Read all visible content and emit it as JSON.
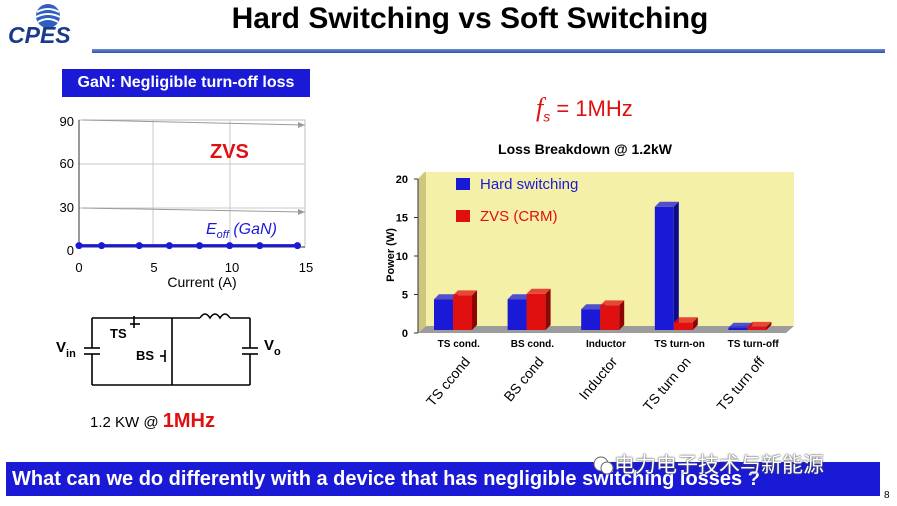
{
  "header": {
    "logo_text": "CPES",
    "title": "Hard Switching vs Soft Switching"
  },
  "badge": {
    "label": "GaN: Negligible turn-off loss"
  },
  "frequency": {
    "symbol": "f",
    "subscript": "s",
    "value": " = 1MHz"
  },
  "left_plot": {
    "zvs_label": "ZVS",
    "eoff_symbol": "E",
    "eoff_sub": "off",
    "eoff_rest": " (GaN)",
    "xlabel": "Current (A)",
    "xticks": [
      "0",
      "5",
      "10",
      "15"
    ],
    "yticks": [
      "0",
      "30",
      "60",
      "90"
    ]
  },
  "circuit": {
    "vin": "V",
    "vin_sub": "in",
    "vo": "V",
    "vo_sub": "o",
    "ts": "TS",
    "bs": "BS"
  },
  "power_note": {
    "prefix": "1.2 KW @ ",
    "freq": "1MHz"
  },
  "question": "What can we do differently with a device that has negligible switching losses ?",
  "watermark": "电力电子技术与新能源",
  "page_number": "8",
  "colors": {
    "hard": "#1a1ad6",
    "zvs": "#e01010",
    "chart_bg": "#f5f0a8",
    "banner": "#1a1ad6"
  },
  "chart_data": [
    {
      "type": "line",
      "x": [
        0,
        1.5,
        4,
        6,
        8,
        10,
        12,
        14.5
      ],
      "series": [
        {
          "name": "Eoff (GaN)",
          "values": [
            1,
            1,
            1,
            1,
            1,
            1,
            1,
            1
          ]
        }
      ],
      "xlabel": "Current (A)",
      "ylabel": "",
      "xlim": [
        0,
        15
      ],
      "ylim": [
        0,
        90
      ],
      "grid": true
    },
    {
      "type": "bar",
      "title": "Loss Breakdown @ 1.2kW",
      "categories": [
        "TS cond.",
        "BS cond.",
        "Inductor",
        "TS turn-on",
        "TS turn-off"
      ],
      "rotated_labels": [
        "TS ccond",
        "BS cond",
        "Inductor",
        "TS turn on",
        "TS turn off"
      ],
      "series": [
        {
          "name": "Hard switching",
          "values": [
            4,
            4,
            2.7,
            16,
            0.3
          ]
        },
        {
          "name": "ZVS (CRM)",
          "values": [
            4.5,
            4.7,
            3.2,
            1.0,
            0.4
          ]
        }
      ],
      "ylabel": "Power (W)",
      "yticks": [
        "0",
        "5",
        "10",
        "15",
        "20"
      ],
      "ylim": [
        0,
        20
      ],
      "legend": "top-left"
    }
  ]
}
